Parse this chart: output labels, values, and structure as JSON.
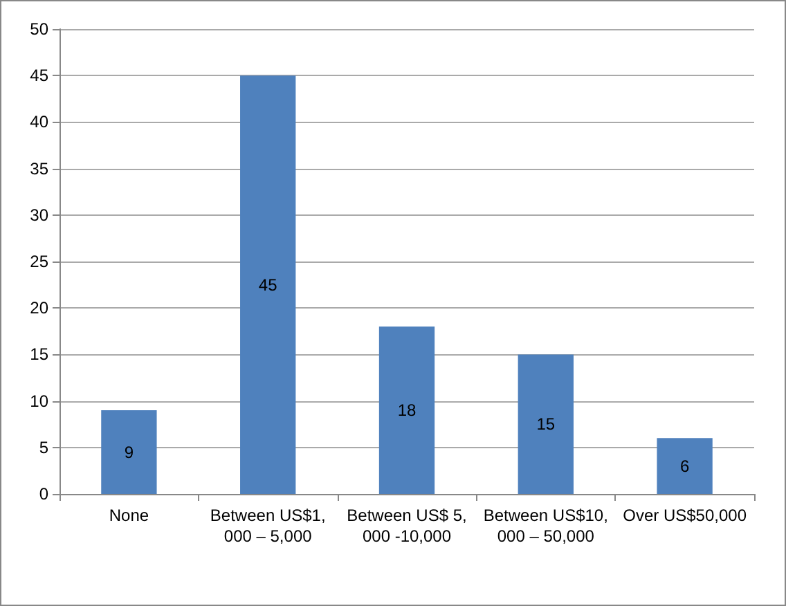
{
  "chart_data": {
    "type": "bar",
    "categories": [
      "None",
      "Between US$1,000 – 5,000",
      "Between US$ 5,000 -10,000",
      "Between US$10,000 – 50,000",
      "Over US$50,000"
    ],
    "values": [
      9,
      45,
      18,
      15,
      6
    ],
    "color": "#4f81bd",
    "ylim": [
      0,
      50
    ],
    "yticks": [
      0,
      5,
      10,
      15,
      20,
      25,
      30,
      35,
      40,
      45,
      50
    ],
    "grid": "y",
    "data_labels": true
  }
}
